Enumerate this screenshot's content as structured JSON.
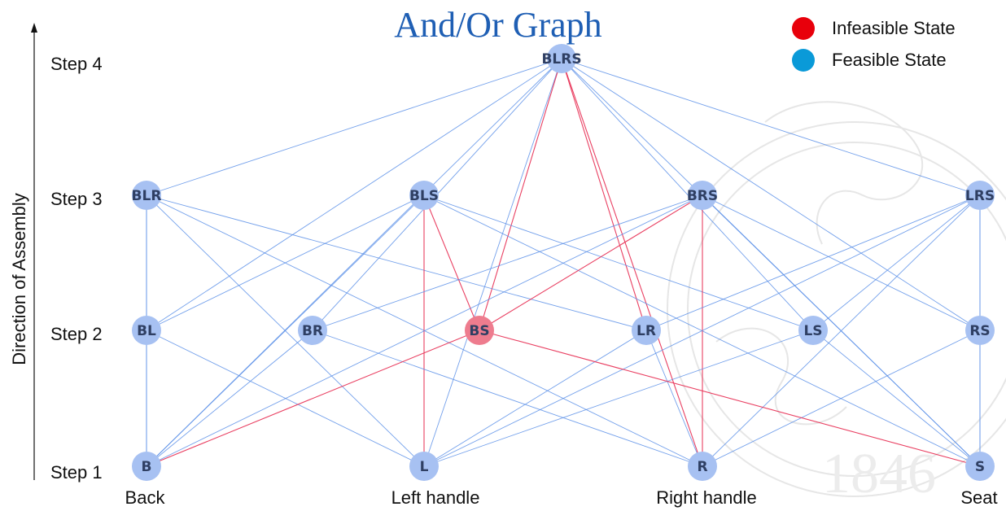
{
  "title": "And/Or Graph",
  "axis_label": "Direction of Assembly",
  "steps": [
    {
      "id": "s4",
      "label": "Step 4"
    },
    {
      "id": "s3",
      "label": "Step 3"
    },
    {
      "id": "s2",
      "label": "Step 2"
    },
    {
      "id": "s1",
      "label": "Step 1"
    }
  ],
  "part_labels": {
    "B": "Back",
    "L": "Left handle",
    "R": "Right handle",
    "S": "Seat"
  },
  "legend": [
    {
      "label": "Infeasible State",
      "color": "#e8000b"
    },
    {
      "label": "Feasible State",
      "color": "#0a9ad8"
    }
  ],
  "colors": {
    "feasible_node": "#a7c1f2",
    "infeasible_node": "#ee7c8e",
    "feasible_edge": "#5b8fe8",
    "infeasible_edge": "#e8365a"
  },
  "watermark_text": "1846",
  "nodes": [
    {
      "id": "BLRS",
      "label": "BLRS",
      "step": 4,
      "state": "feasible"
    },
    {
      "id": "BLR",
      "label": "BLR",
      "step": 3,
      "state": "feasible"
    },
    {
      "id": "BLS",
      "label": "BLS",
      "step": 3,
      "state": "feasible"
    },
    {
      "id": "BRS",
      "label": "BRS",
      "step": 3,
      "state": "feasible"
    },
    {
      "id": "LRS",
      "label": "LRS",
      "step": 3,
      "state": "feasible"
    },
    {
      "id": "BL",
      "label": "BL",
      "step": 2,
      "state": "feasible"
    },
    {
      "id": "BR",
      "label": "BR",
      "step": 2,
      "state": "feasible"
    },
    {
      "id": "BS",
      "label": "BS",
      "step": 2,
      "state": "infeasible"
    },
    {
      "id": "LR",
      "label": "LR",
      "step": 2,
      "state": "feasible"
    },
    {
      "id": "LS",
      "label": "LS",
      "step": 2,
      "state": "feasible"
    },
    {
      "id": "RS",
      "label": "RS",
      "step": 2,
      "state": "feasible"
    },
    {
      "id": "B",
      "label": "B",
      "step": 1,
      "state": "feasible"
    },
    {
      "id": "L",
      "label": "L",
      "step": 1,
      "state": "feasible"
    },
    {
      "id": "R",
      "label": "R",
      "step": 1,
      "state": "feasible"
    },
    {
      "id": "S",
      "label": "S",
      "step": 1,
      "state": "feasible"
    }
  ],
  "edges": [
    [
      "BLRS",
      "BLR",
      "feasible"
    ],
    [
      "BLRS",
      "LRS",
      "feasible"
    ],
    [
      "BLRS",
      "BL",
      "feasible"
    ],
    [
      "BLRS",
      "BR",
      "feasible"
    ],
    [
      "BLRS",
      "LS",
      "feasible"
    ],
    [
      "BLRS",
      "RS",
      "feasible"
    ],
    [
      "BLRS",
      "B",
      "feasible"
    ],
    [
      "BLRS",
      "L",
      "feasible"
    ],
    [
      "BLRS",
      "S",
      "feasible"
    ],
    [
      "BLRS",
      "BS",
      "infeasible"
    ],
    [
      "BLRS",
      "LR",
      "infeasible"
    ],
    [
      "BLRS",
      "R",
      "infeasible"
    ],
    [
      "BLR",
      "BL",
      "feasible"
    ],
    [
      "BLR",
      "B",
      "feasible"
    ],
    [
      "BLR",
      "L",
      "feasible"
    ],
    [
      "BLR",
      "LR",
      "feasible"
    ],
    [
      "BLR",
      "R",
      "feasible"
    ],
    [
      "BLS",
      "BL",
      "feasible"
    ],
    [
      "BLS",
      "B",
      "feasible"
    ],
    [
      "BLS",
      "LS",
      "feasible"
    ],
    [
      "BLS",
      "S",
      "feasible"
    ],
    [
      "BLS",
      "L",
      "infeasible"
    ],
    [
      "BLS",
      "BS",
      "infeasible"
    ],
    [
      "BRS",
      "BR",
      "feasible"
    ],
    [
      "BRS",
      "B",
      "feasible"
    ],
    [
      "BRS",
      "RS",
      "feasible"
    ],
    [
      "BRS",
      "S",
      "feasible"
    ],
    [
      "BRS",
      "R",
      "infeasible"
    ],
    [
      "BRS",
      "BS",
      "infeasible"
    ],
    [
      "LRS",
      "LR",
      "feasible"
    ],
    [
      "LRS",
      "L",
      "feasible"
    ],
    [
      "LRS",
      "LS",
      "feasible"
    ],
    [
      "LRS",
      "R",
      "feasible"
    ],
    [
      "LRS",
      "RS",
      "feasible"
    ],
    [
      "LRS",
      "S",
      "feasible"
    ],
    [
      "BL",
      "B",
      "feasible"
    ],
    [
      "BL",
      "L",
      "feasible"
    ],
    [
      "BR",
      "B",
      "feasible"
    ],
    [
      "BR",
      "R",
      "feasible"
    ],
    [
      "LR",
      "L",
      "feasible"
    ],
    [
      "LR",
      "R",
      "feasible"
    ],
    [
      "LS",
      "L",
      "feasible"
    ],
    [
      "LS",
      "S",
      "feasible"
    ],
    [
      "RS",
      "R",
      "feasible"
    ],
    [
      "RS",
      "S",
      "feasible"
    ],
    [
      "BS",
      "B",
      "infeasible"
    ],
    [
      "BS",
      "S",
      "infeasible"
    ]
  ]
}
